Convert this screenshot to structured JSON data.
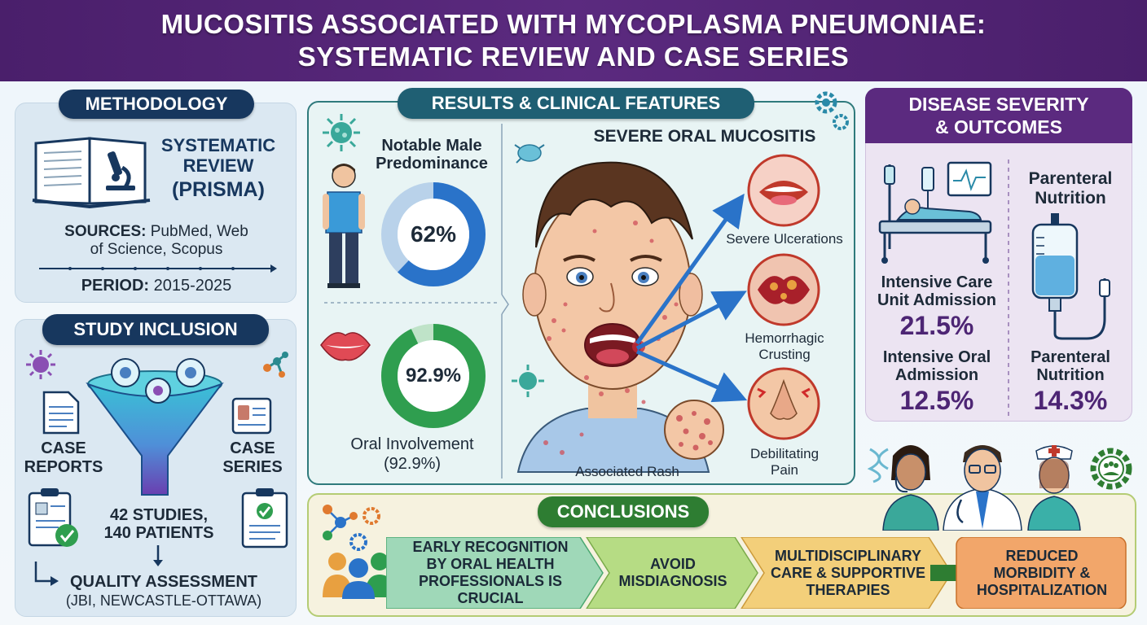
{
  "header": {
    "title_line1": "MUCOSITIS ASSOCIATED WITH MYCOPLASMA PNEUMONIAE:",
    "title_line2": "SYSTEMATIC REVIEW AND CASE SERIES"
  },
  "methodology": {
    "heading": "METHODOLOGY",
    "review_line1": "SYSTEMATIC",
    "review_line2": "REVIEW",
    "review_line3": "(PRISMA)",
    "sources_label": "SOURCES:",
    "sources_value1": "PubMed, Web",
    "sources_value2": "of Science, Scopus",
    "period_label": "PERIOD:",
    "period_value": "2015-2025"
  },
  "inclusion": {
    "heading": "STUDY INCLUSION",
    "case_reports_1": "CASE",
    "case_reports_2": "REPORTS",
    "case_series_1": "CASE",
    "case_series_2": "SERIES",
    "studies": "42 STUDIES,",
    "patients": "140 PATIENTS",
    "quality": "QUALITY ASSESSMENT",
    "quality_tools": "(JBI, NEWCASTLE-OTTAWA)"
  },
  "results": {
    "heading": "RESULTS & CLINICAL FEATURES",
    "male_line1": "Notable Male",
    "male_line2": "Predominance",
    "male_pct_label": "62%",
    "male_pct": 62,
    "oral_pct_label": "92.9%",
    "oral_pct": 92.9,
    "oral_line1": "Oral Involvement",
    "oral_line2": "(92.9%)",
    "severe_title": "SEVERE ORAL MUCOSITIS",
    "feature1": "Severe Ulcerations",
    "feature2_line1": "Hemorrhagic",
    "feature2_line2": "Crusting",
    "feature3_line1": "Debilitating",
    "feature3_line2": "Pain",
    "rash": "Associated Rash"
  },
  "severity": {
    "heading_line1": "DISEASE SEVERITY",
    "heading_line2": "& OUTCOMES",
    "parenteral_top1": "Parenteral",
    "parenteral_top2": "Nutrition",
    "icu_line1": "Intensive Care",
    "icu_line2": "Unit Admission",
    "icu_value": "21.5%",
    "ioa_line1": "Intensive Oral",
    "ioa_line2": "Admission",
    "ioa_value": "12.5%",
    "pn_line1": "Parenteral",
    "pn_line2": "Nutrition",
    "pn_value": "14.3%"
  },
  "conclusions": {
    "heading": "CONCLUSIONS",
    "step1": [
      "EARLY RECOGNITION",
      "BY ORAL HEALTH",
      "PROFESSIONALS IS",
      "CRUCIAL"
    ],
    "step2": [
      "AVOID",
      "MISDIAGNOSIS"
    ],
    "step3": [
      "MULTIDISCIPLINARY",
      "CARE & SUPPORTIVE",
      "THERAPIES"
    ],
    "step4": [
      "REDUCED",
      "MORBIDITY &",
      "HOSPITALIZATION"
    ]
  },
  "colors": {
    "header": "#4a1f6b",
    "navy_pill": "#17375e",
    "teal_pill": "#1f5f73",
    "male_ring": "#2a73c9",
    "oral_ring": "#2f9e4f",
    "severity_value": "#4d2574",
    "conclusion_green": "#2e7d32"
  }
}
